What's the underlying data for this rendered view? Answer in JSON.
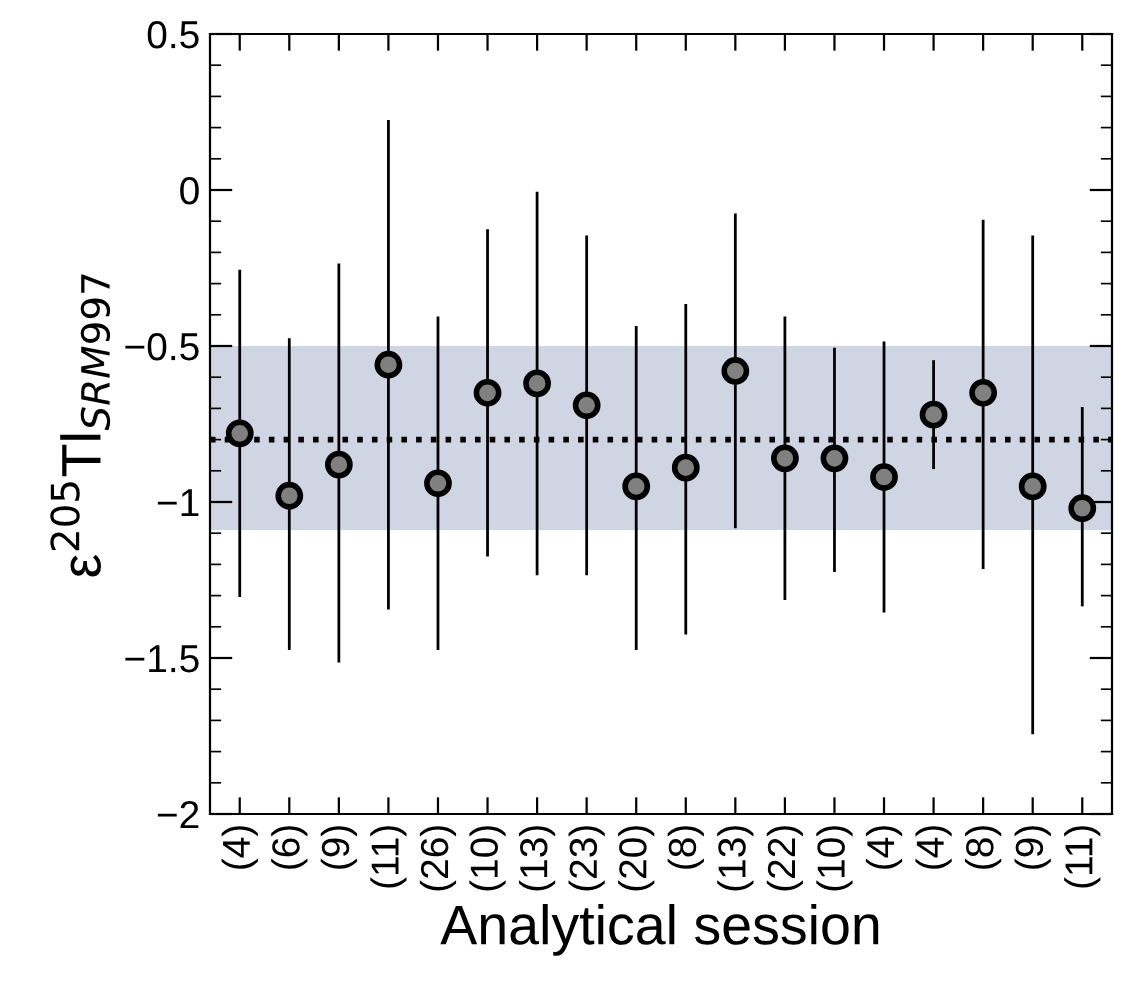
{
  "chart_data": {
    "type": "scatter",
    "xlabel": "Analytical session",
    "ylabel": "ε$^{205}$Tl$_{SRM997}$",
    "categories": [
      "(4)",
      "(6)",
      "(9)",
      "(11)",
      "(26)",
      "(10)",
      "(13)",
      "(23)",
      "(20)",
      "(8)",
      "(13)",
      "(22)",
      "(10)",
      "(4)",
      "(4)",
      "(8)",
      "(9)",
      "(11)"
    ],
    "values": [
      -0.78,
      -0.98,
      -0.88,
      -0.56,
      -0.94,
      -0.65,
      -0.62,
      -0.69,
      -0.95,
      -0.89,
      -0.58,
      -0.86,
      -0.86,
      -0.92,
      -0.72,
      -0.65,
      -0.95,
      -1.02
    ],
    "errors": [
      [
        -1.3,
        -0.26
      ],
      [
        -1.47,
        -0.48
      ],
      [
        -1.51,
        -0.24
      ],
      [
        -1.34,
        0.22
      ],
      [
        -1.47,
        -0.41
      ],
      [
        -1.17,
        -0.13
      ],
      [
        -1.23,
        -0.01
      ],
      [
        -1.23,
        -0.15
      ],
      [
        -1.47,
        -0.44
      ],
      [
        -1.42,
        -0.37
      ],
      [
        -1.08,
        -0.08
      ],
      [
        -1.31,
        -0.41
      ],
      [
        -1.22,
        -0.51
      ],
      [
        -1.35,
        -0.49
      ],
      [
        -0.89,
        -0.55
      ],
      [
        -1.21,
        -0.1
      ],
      [
        -1.74,
        -0.15
      ],
      [
        -1.33,
        -0.7
      ]
    ],
    "color": "#808080",
    "marker": "circle",
    "ylim": [
      -2,
      0.5
    ],
    "yticks": [
      {
        "value": -2,
        "label": "−2"
      },
      {
        "value": -1.5,
        "label": "−1.5"
      },
      {
        "value": -1,
        "label": "−1"
      },
      {
        "value": -0.5,
        "label": "−0.5"
      },
      0,
      0.5
    ],
    "ref_lines": [
      {
        "axis": "y",
        "value": -0.8,
        "color": "#000000",
        "line_style": "dotted"
      }
    ],
    "bands": [
      {
        "axis": "y",
        "from": -1.09,
        "to": -0.5,
        "color": "#d0d5e3"
      }
    ],
    "grid": false,
    "legend": false
  }
}
